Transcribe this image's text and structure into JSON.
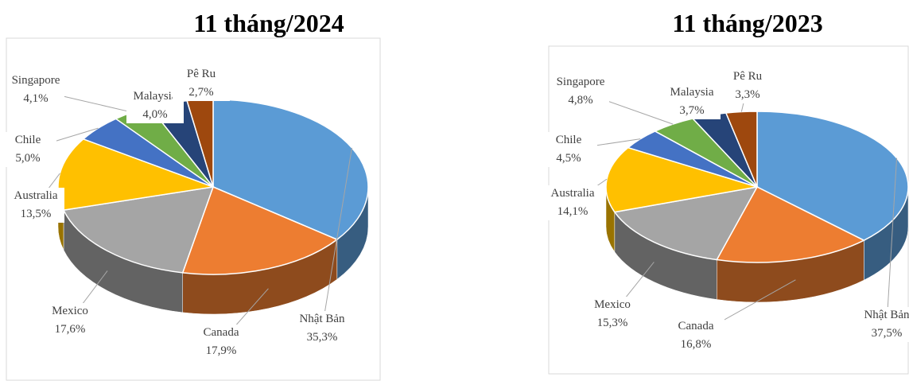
{
  "chart_data": [
    {
      "type": "pie",
      "title": "11 tháng/2024",
      "categories": [
        "Nhật Bản",
        "Canada",
        "Mexico",
        "Australia",
        "Chile",
        "Singapore",
        "Malaysia",
        "Pê Ru"
      ],
      "values": [
        35.3,
        17.9,
        17.6,
        13.5,
        5.0,
        4.1,
        4.0,
        2.7
      ],
      "value_labels": [
        "35,3%",
        "17,9%",
        "17,6%",
        "13,5%",
        "5,0%",
        "4,1%",
        "4,0%",
        "2,7%"
      ],
      "colors": [
        "#5b9bd5",
        "#ed7d31",
        "#a5a5a5",
        "#ffc000",
        "#4472c4",
        "#70ad47",
        "#264478",
        "#9e480e"
      ]
    },
    {
      "type": "pie",
      "title": "11 tháng/2023",
      "categories": [
        "Nhật Bản",
        "Canada",
        "Mexico",
        "Australia",
        "Chile",
        "Singapore",
        "Malaysia",
        "Pê Ru"
      ],
      "values": [
        37.5,
        16.8,
        15.3,
        14.1,
        4.5,
        4.8,
        3.7,
        3.3
      ],
      "value_labels": [
        "37,5%",
        "16,8%",
        "15,3%",
        "14,1%",
        "4,5%",
        "4,8%",
        "3,7%",
        "3,3%"
      ],
      "colors": [
        "#5b9bd5",
        "#ed7d31",
        "#a5a5a5",
        "#ffc000",
        "#4472c4",
        "#70ad47",
        "#264478",
        "#9e480e"
      ]
    }
  ]
}
